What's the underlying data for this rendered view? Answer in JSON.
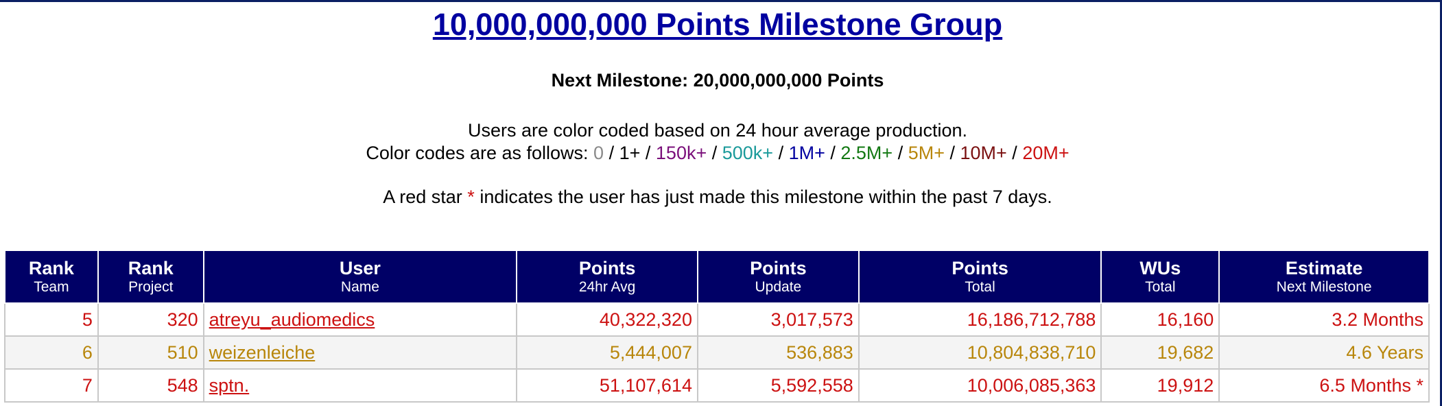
{
  "title": "10,000,000,000 Points Milestone Group",
  "next_milestone": "Next Milestone: 20,000,000,000 Points",
  "legend": {
    "line1": "Users are color coded based on 24 hour average production.",
    "prefix": "Color codes are as follows: ",
    "sep": " / ",
    "codes": [
      {
        "label": "0",
        "color": "#8a8a8a"
      },
      {
        "label": "1+",
        "color": "#000000"
      },
      {
        "label": "150k+",
        "color": "#7a0f7a"
      },
      {
        "label": "500k+",
        "color": "#1a9a9a"
      },
      {
        "label": "1M+",
        "color": "#0000a0"
      },
      {
        "label": "2.5M+",
        "color": "#127812"
      },
      {
        "label": "5M+",
        "color": "#b8860b"
      },
      {
        "label": "10M+",
        "color": "#7a1010"
      },
      {
        "label": "20M+",
        "color": "#cc1111"
      }
    ]
  },
  "star_note": {
    "before": "A red star ",
    "star": "*",
    "after": " indicates the user has just made this milestone within the past 7 days."
  },
  "table": {
    "headers": [
      {
        "top": "Rank",
        "bottom": "Team"
      },
      {
        "top": "Rank",
        "bottom": "Project"
      },
      {
        "top": "User",
        "bottom": "Name"
      },
      {
        "top": "Points",
        "bottom": "24hr Avg"
      },
      {
        "top": "Points",
        "bottom": "Update"
      },
      {
        "top": "Points",
        "bottom": "Total"
      },
      {
        "top": "WUs",
        "bottom": "Total"
      },
      {
        "top": "Estimate",
        "bottom": "Next Milestone"
      }
    ],
    "rows": [
      {
        "rank_team": "5",
        "rank_project": "320",
        "user": "atreyu_audiomedics",
        "avg": "40,322,320",
        "update": "3,017,573",
        "total": "16,186,712,788",
        "wus": "16,160",
        "estimate": "3.2 Months",
        "color": "#cc1111"
      },
      {
        "rank_team": "6",
        "rank_project": "510",
        "user": "weizenleiche",
        "avg": "5,444,007",
        "update": "536,883",
        "total": "10,804,838,710",
        "wus": "19,682",
        "estimate": "4.6 Years",
        "color": "#b8860b"
      },
      {
        "rank_team": "7",
        "rank_project": "548",
        "user": "sptn.",
        "avg": "51,107,614",
        "update": "5,592,558",
        "total": "10,006,085,363",
        "wus": "19,912",
        "estimate": "6.5 Months *",
        "color": "#cc1111"
      }
    ]
  }
}
